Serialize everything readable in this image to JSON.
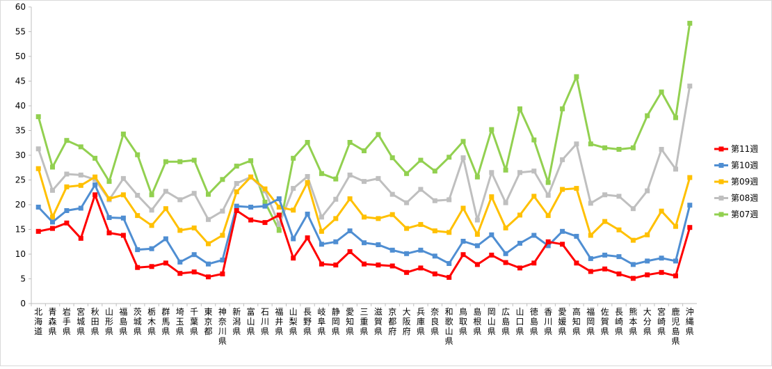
{
  "chart_data": {
    "type": "line",
    "title": "",
    "xlabel": "",
    "ylabel": "",
    "ylim": [
      0,
      60
    ],
    "yticks": [
      0,
      5,
      10,
      15,
      20,
      25,
      30,
      35,
      40,
      45,
      50,
      55,
      60
    ],
    "grid": false,
    "legend_position": "right",
    "categories": [
      "北海道",
      "青森県",
      "岩手県",
      "宮城県",
      "秋田県",
      "山形県",
      "福島県",
      "茨城県",
      "栃木県",
      "群馬県",
      "埼玉県",
      "千葉県",
      "東京都",
      "神奈川県",
      "新潟県",
      "富山県",
      "石川県",
      "福井県",
      "山梨県",
      "長野県",
      "岐阜県",
      "静岡県",
      "愛知県",
      "三重県",
      "滋賀県",
      "京都府",
      "大阪府",
      "兵庫県",
      "奈良県",
      "和歌山県",
      "鳥取県",
      "島根県",
      "岡山県",
      "広島県",
      "山口県",
      "徳島県",
      "香川県",
      "愛媛県",
      "高知県",
      "福岡県",
      "佐賀県",
      "長崎県",
      "熊本県",
      "大分県",
      "宮崎県",
      "鹿児島県",
      "沖縄県"
    ],
    "series": [
      {
        "name": "第07週",
        "color": "#92d050",
        "values": [
          37.8,
          27.6,
          33.0,
          31.7,
          29.4,
          24.7,
          34.3,
          30.1,
          22.0,
          28.7,
          28.7,
          29.0,
          22.1,
          25.1,
          27.8,
          28.9,
          20.5,
          14.8,
          29.4,
          32.6,
          26.3,
          25.2,
          32.6,
          30.9,
          34.2,
          29.5,
          26.3,
          29.0,
          26.8,
          29.6,
          32.8,
          25.6,
          35.2,
          27.0,
          39.4,
          33.1,
          24.5,
          39.4,
          45.9,
          32.3,
          31.5,
          31.2,
          31.5,
          38.0,
          42.8,
          37.6,
          56.7
        ]
      },
      {
        "name": "第08週",
        "color": "#bfbfbf",
        "values": [
          31.3,
          22.9,
          26.2,
          26.0,
          25.1,
          21.0,
          25.3,
          21.9,
          18.9,
          22.7,
          21.0,
          22.3,
          17.0,
          18.7,
          24.3,
          25.6,
          22.8,
          16.0,
          23.3,
          25.7,
          17.5,
          21.1,
          26.0,
          24.7,
          25.3,
          22.1,
          20.4,
          23.1,
          20.8,
          21.0,
          29.5,
          16.9,
          26.5,
          20.4,
          26.5,
          26.8,
          21.9,
          29.1,
          32.3,
          20.3,
          22.0,
          21.7,
          19.2,
          22.8,
          31.2,
          27.2,
          44.0
        ]
      },
      {
        "name": "第09週",
        "color": "#ffc000",
        "values": [
          27.3,
          17.5,
          23.6,
          23.9,
          25.6,
          21.2,
          22.0,
          17.8,
          15.8,
          19.2,
          14.8,
          15.3,
          12.1,
          13.8,
          22.6,
          25.6,
          23.2,
          19.5,
          18.9,
          24.5,
          14.6,
          17.2,
          21.2,
          17.5,
          17.2,
          18.0,
          15.2,
          16.0,
          14.7,
          14.4,
          19.3,
          14.0,
          21.6,
          15.3,
          17.9,
          21.7,
          17.8,
          23.1,
          23.3,
          13.8,
          16.6,
          14.9,
          12.8,
          13.9,
          18.7,
          15.6,
          25.5
        ]
      },
      {
        "name": "第10週",
        "color": "#4f8ed2",
        "values": [
          19.5,
          16.5,
          18.8,
          19.3,
          24.0,
          17.4,
          17.3,
          10.9,
          11.1,
          13.1,
          8.4,
          9.9,
          8.0,
          8.8,
          19.7,
          19.5,
          19.7,
          21.2,
          13.1,
          18.1,
          12.0,
          12.5,
          14.7,
          12.3,
          11.9,
          10.8,
          10.1,
          10.8,
          9.6,
          8.1,
          12.6,
          11.7,
          13.9,
          10.1,
          12.2,
          13.8,
          11.7,
          14.6,
          13.6,
          9.1,
          9.8,
          9.5,
          7.9,
          8.6,
          9.2,
          8.6,
          19.9
        ]
      },
      {
        "name": "第11週",
        "color": "#ff0000",
        "values": [
          14.6,
          15.2,
          16.3,
          13.2,
          22.0,
          14.3,
          13.8,
          7.3,
          7.5,
          8.2,
          6.1,
          6.4,
          5.4,
          6.0,
          18.8,
          16.9,
          16.4,
          17.9,
          9.2,
          13.3,
          8.0,
          7.8,
          10.5,
          8.0,
          7.8,
          7.6,
          6.3,
          7.2,
          6.0,
          5.3,
          9.9,
          7.9,
          9.8,
          8.3,
          7.2,
          8.2,
          12.5,
          12.0,
          8.2,
          6.5,
          7.0,
          6.0,
          5.1,
          5.8,
          6.3,
          5.6,
          15.4
        ]
      }
    ],
    "legend_order": [
      "第11週",
      "第10週",
      "第09週",
      "第08週",
      "第07週"
    ]
  }
}
